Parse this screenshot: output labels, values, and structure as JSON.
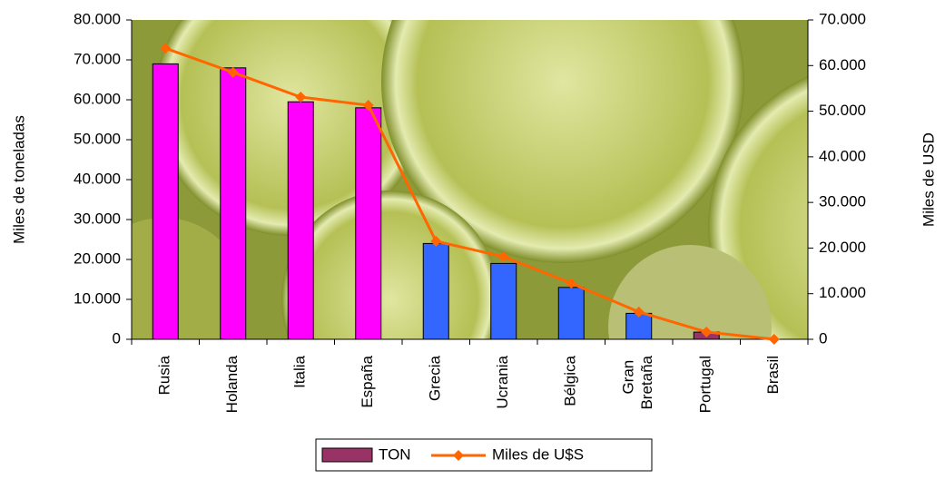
{
  "chart_data": {
    "type": "bar-line",
    "categories": [
      "Rusia",
      "Holanda",
      "Italia",
      "España",
      "Grecia",
      "Ucrania",
      "Bélgica",
      "Gran Bretaña",
      "Portugal",
      "Brasil"
    ],
    "series": [
      {
        "name": "TON",
        "type": "bar",
        "color": "#993366",
        "point_colors": [
          "#ff00ff",
          "#ff00ff",
          "#ff00ff",
          "#ff00ff",
          "#3366ff",
          "#3366ff",
          "#3366ff",
          "#3366ff",
          "#993366",
          "#993366"
        ],
        "values": [
          69000,
          68000,
          59500,
          58000,
          24000,
          19000,
          13000,
          6500,
          1800,
          0
        ]
      },
      {
        "name": "Miles de U$S",
        "type": "line",
        "axis": "y2",
        "color": "#ff6600",
        "values": [
          63800,
          58500,
          53100,
          51300,
          21500,
          18100,
          12300,
          6000,
          1600,
          0
        ]
      }
    ],
    "y_label": "Miles de toneladas",
    "y2_label": "Miles de USD",
    "ylim": [
      0,
      80000
    ],
    "yticks": [
      0,
      {
        "value": 10000,
        "label": "10.000"
      },
      {
        "value": 20000,
        "label": "20.000"
      },
      {
        "value": 30000,
        "label": "30.000"
      },
      {
        "value": 40000,
        "label": "40.000"
      },
      {
        "value": 50000,
        "label": "50.000"
      },
      {
        "value": 60000,
        "label": "60.000"
      },
      {
        "value": 70000,
        "label": "70.000"
      },
      {
        "value": 80000,
        "label": "80.000"
      }
    ],
    "y2lim": [
      0,
      70000
    ],
    "y2ticks": [
      0,
      {
        "value": 10000,
        "label": "10.000"
      },
      {
        "value": 20000,
        "label": "20.000"
      },
      {
        "value": 30000,
        "label": "30.000"
      },
      {
        "value": 40000,
        "label": "40.000"
      },
      {
        "value": 50000,
        "label": "50.000"
      },
      {
        "value": 60000,
        "label": "60.000"
      },
      {
        "value": 70000,
        "label": "70.000"
      }
    ],
    "legend": "bottom"
  }
}
